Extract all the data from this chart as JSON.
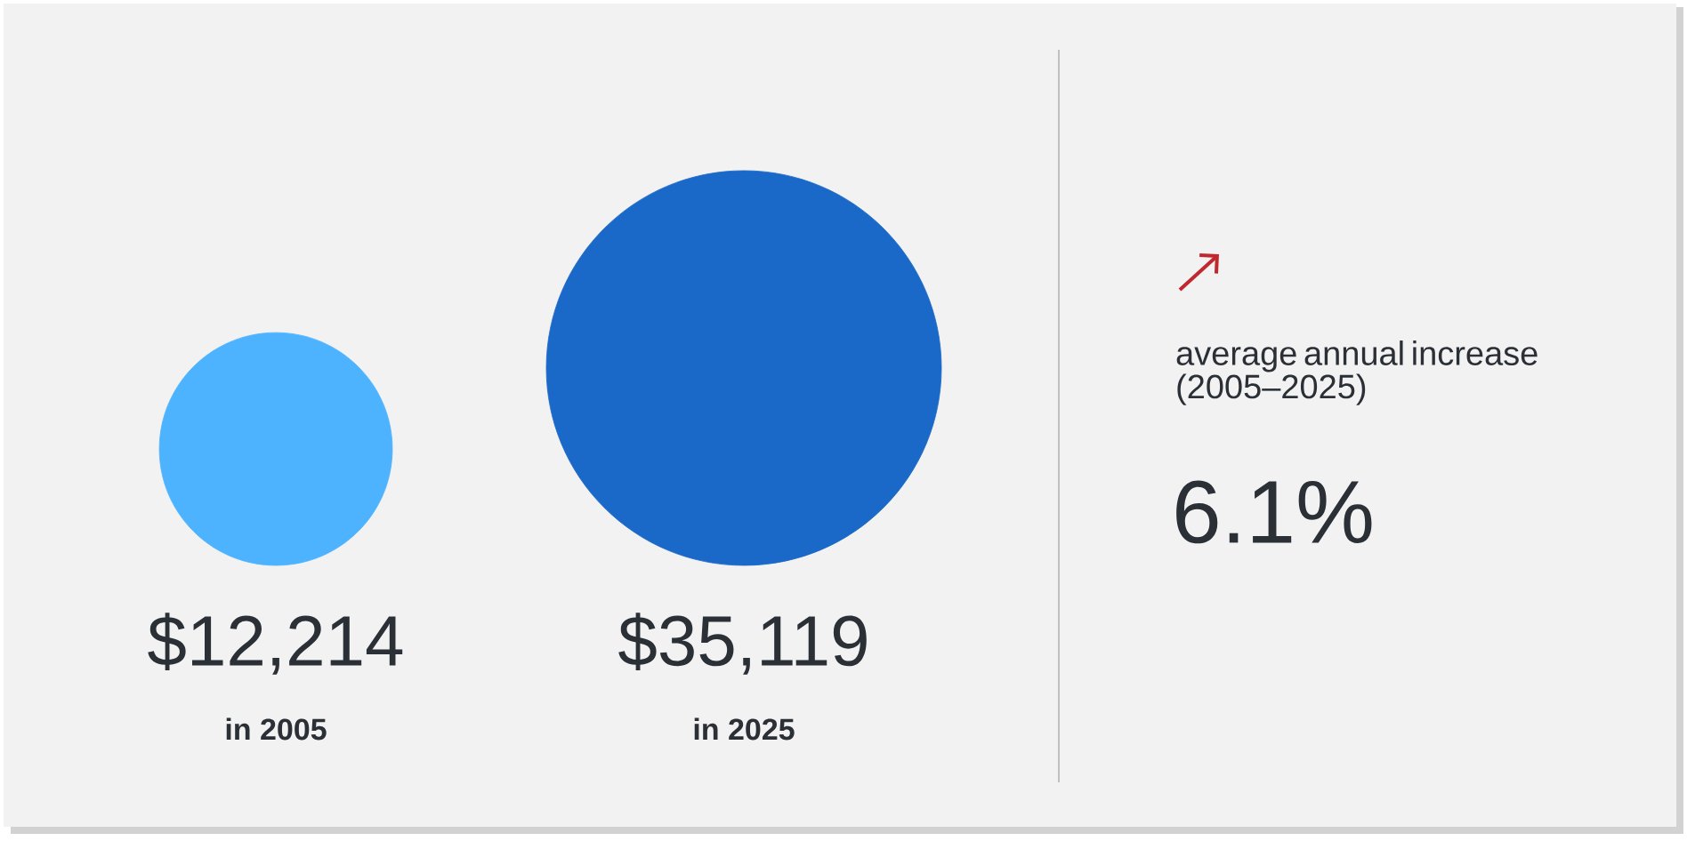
{
  "chart_data": {
    "type": "other",
    "categories": [
      "in 2005",
      "in 2025"
    ],
    "values": [
      12214,
      35119
    ],
    "value_labels": [
      "$12,214",
      "$35,119"
    ],
    "colors": [
      "#4db3ff",
      "#1a68c8"
    ],
    "annotations": [
      "average annual increase (2005–2025)",
      "6.1%"
    ]
  }
}
